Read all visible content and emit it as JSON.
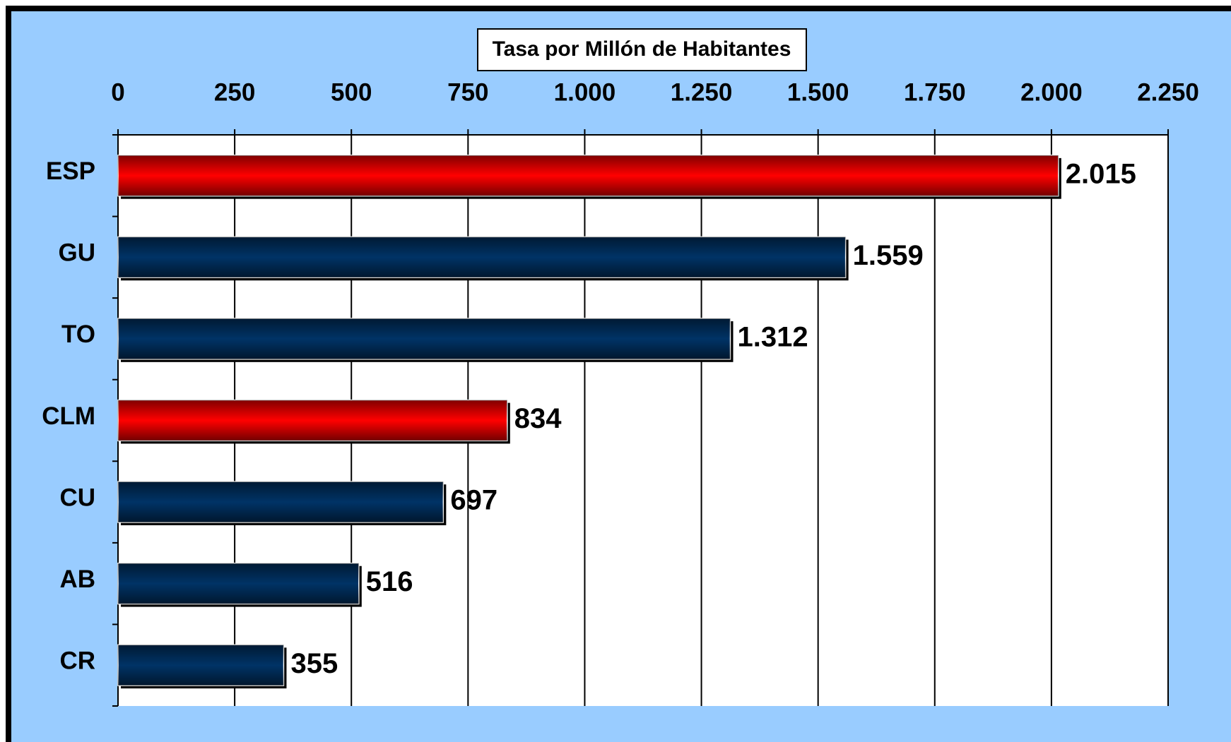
{
  "chart_data": {
    "type": "bar",
    "orientation": "horizontal",
    "title": "Tasa por Millón de Habitantes",
    "categories": [
      "ESP",
      "GU",
      "TO",
      "CLM",
      "CU",
      "AB",
      "CR"
    ],
    "values": [
      2015,
      1559,
      1312,
      834,
      697,
      516,
      355
    ],
    "value_labels": [
      "2.015",
      "1.559",
      "1.312",
      "834",
      "697",
      "516",
      "355"
    ],
    "colors": [
      "#ff0000",
      "#003366",
      "#003366",
      "#ff0000",
      "#003366",
      "#003366",
      "#003366"
    ],
    "xlim": [
      0,
      2250
    ],
    "xticks": [
      0,
      250,
      500,
      750,
      {
        "value": 1000,
        "label": "1.000"
      },
      {
        "value": 1250,
        "label": "1.250"
      },
      {
        "value": 1500,
        "label": "1.500"
      },
      {
        "value": 1750,
        "label": "1.750"
      },
      {
        "value": 2000,
        "label": "2.000"
      },
      {
        "value": 2250,
        "label": "2.250"
      }
    ],
    "grid": true
  }
}
